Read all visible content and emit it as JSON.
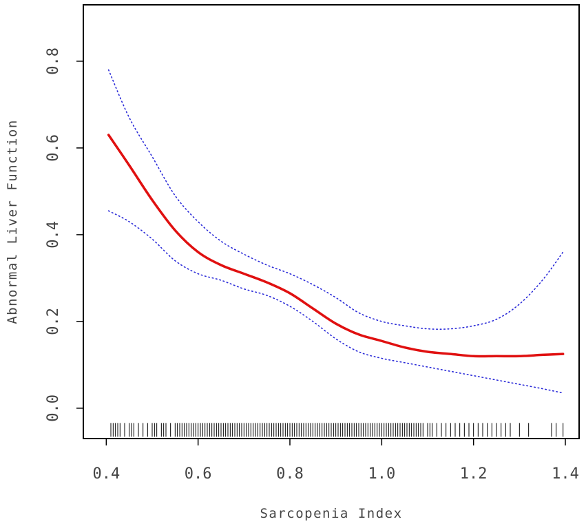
{
  "chart_data": {
    "type": "line",
    "title": "",
    "xlabel": "Sarcopenia Index",
    "ylabel": "Abnormal Liver Function",
    "xlim": [
      0.35,
      1.43
    ],
    "ylim": [
      -0.07,
      0.93
    ],
    "xticks": [
      0.4,
      0.6,
      0.8,
      1.0,
      1.2,
      1.4
    ],
    "xtick_labels": [
      "0.4",
      "0.6",
      "0.8",
      "1.0",
      "1.2",
      "1.4"
    ],
    "yticks": [
      0.0,
      0.2,
      0.4,
      0.6,
      0.8
    ],
    "ytick_labels": [
      "0.0",
      "0.2",
      "0.4",
      "0.6",
      "0.8"
    ],
    "grid": false,
    "legend": "none",
    "colors": {
      "fit": "#e01010",
      "ci": "#2a2ad8",
      "rug": "#000000",
      "axes": "#000000"
    },
    "series": [
      {
        "role": "fit",
        "style": "solid",
        "x": [
          0.405,
          0.45,
          0.5,
          0.55,
          0.6,
          0.65,
          0.7,
          0.75,
          0.8,
          0.85,
          0.9,
          0.95,
          1.0,
          1.05,
          1.1,
          1.15,
          1.2,
          1.25,
          1.3,
          1.35,
          1.395
        ],
        "y": [
          0.63,
          0.56,
          0.48,
          0.41,
          0.36,
          0.33,
          0.31,
          0.29,
          0.265,
          0.23,
          0.195,
          0.17,
          0.155,
          0.14,
          0.13,
          0.125,
          0.12,
          0.12,
          0.12,
          0.123,
          0.125
        ]
      },
      {
        "role": "upper-ci",
        "style": "dotted",
        "x": [
          0.405,
          0.45,
          0.5,
          0.55,
          0.6,
          0.65,
          0.7,
          0.75,
          0.8,
          0.85,
          0.9,
          0.95,
          1.0,
          1.05,
          1.1,
          1.15,
          1.2,
          1.25,
          1.3,
          1.35,
          1.395
        ],
        "y": [
          0.78,
          0.67,
          0.58,
          0.49,
          0.43,
          0.385,
          0.355,
          0.33,
          0.31,
          0.285,
          0.255,
          0.22,
          0.2,
          0.19,
          0.183,
          0.183,
          0.19,
          0.205,
          0.24,
          0.295,
          0.36
        ]
      },
      {
        "role": "lower-ci",
        "style": "dotted",
        "x": [
          0.405,
          0.45,
          0.5,
          0.55,
          0.6,
          0.65,
          0.7,
          0.75,
          0.8,
          0.85,
          0.9,
          0.95,
          1.0,
          1.05,
          1.1,
          1.15,
          1.2,
          1.25,
          1.3,
          1.35,
          1.395
        ],
        "y": [
          0.455,
          0.43,
          0.39,
          0.34,
          0.31,
          0.295,
          0.275,
          0.26,
          0.235,
          0.2,
          0.16,
          0.13,
          0.115,
          0.105,
          0.095,
          0.085,
          0.075,
          0.065,
          0.055,
          0.045,
          0.035
        ]
      }
    ],
    "rug": {
      "y": -0.05,
      "values": [
        0.41,
        0.415,
        0.42,
        0.425,
        0.43,
        0.44,
        0.45,
        0.455,
        0.46,
        0.47,
        0.48,
        0.49,
        0.5,
        0.505,
        0.51,
        0.52,
        0.525,
        0.53,
        0.54,
        0.55,
        0.555,
        0.56,
        0.565,
        0.57,
        0.575,
        0.58,
        0.585,
        0.59,
        0.595,
        0.6,
        0.605,
        0.61,
        0.615,
        0.62,
        0.625,
        0.63,
        0.635,
        0.64,
        0.645,
        0.65,
        0.655,
        0.66,
        0.665,
        0.67,
        0.675,
        0.68,
        0.685,
        0.69,
        0.695,
        0.7,
        0.705,
        0.71,
        0.715,
        0.72,
        0.725,
        0.73,
        0.735,
        0.74,
        0.745,
        0.75,
        0.755,
        0.76,
        0.765,
        0.77,
        0.775,
        0.78,
        0.785,
        0.79,
        0.795,
        0.8,
        0.805,
        0.81,
        0.815,
        0.82,
        0.825,
        0.83,
        0.835,
        0.84,
        0.845,
        0.85,
        0.855,
        0.86,
        0.865,
        0.87,
        0.875,
        0.88,
        0.885,
        0.89,
        0.895,
        0.9,
        0.905,
        0.91,
        0.915,
        0.92,
        0.925,
        0.93,
        0.935,
        0.94,
        0.945,
        0.95,
        0.955,
        0.96,
        0.965,
        0.97,
        0.975,
        0.98,
        0.985,
        0.99,
        0.995,
        1.0,
        1.005,
        1.01,
        1.015,
        1.02,
        1.025,
        1.03,
        1.035,
        1.04,
        1.045,
        1.05,
        1.055,
        1.06,
        1.065,
        1.07,
        1.075,
        1.08,
        1.085,
        1.09,
        1.1,
        1.105,
        1.11,
        1.12,
        1.13,
        1.14,
        1.15,
        1.16,
        1.17,
        1.18,
        1.19,
        1.2,
        1.21,
        1.22,
        1.23,
        1.24,
        1.25,
        1.26,
        1.27,
        1.28,
        1.3,
        1.32,
        1.37,
        1.38,
        1.395
      ]
    }
  }
}
